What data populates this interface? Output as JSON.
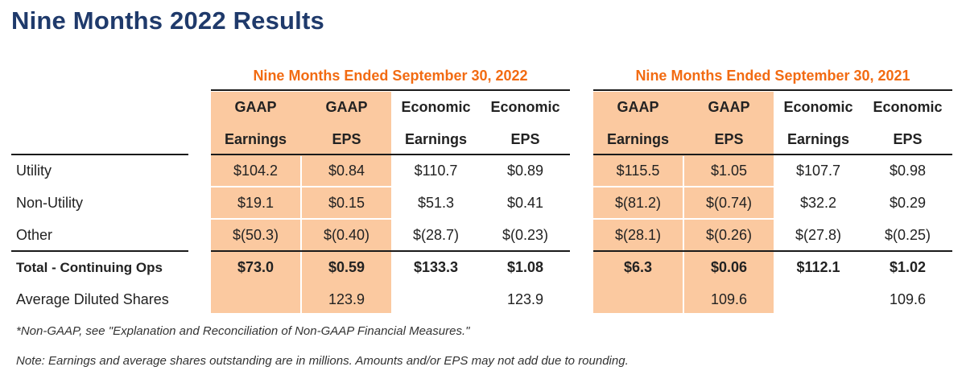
{
  "title": "Nine Months 2022 Results",
  "period_2022": "Nine Months Ended September 30, 2022",
  "period_2021": "Nine Months Ended September 30, 2021",
  "columns": [
    {
      "line1": "GAAP",
      "line2": "Earnings"
    },
    {
      "line1": "GAAP",
      "line2": "EPS"
    },
    {
      "line1": "Economic",
      "line2": "Earnings"
    },
    {
      "line1": "Economic",
      "line2": "EPS"
    }
  ],
  "rows": [
    {
      "label": "Utility",
      "v2022": [
        "$104.2",
        "$0.84",
        "$110.7",
        "$0.89"
      ],
      "v2021": [
        "$115.5",
        "$1.05",
        "$107.7",
        "$0.98"
      ]
    },
    {
      "label": "Non-Utility",
      "v2022": [
        "$19.1",
        "$0.15",
        "$51.3",
        "$0.41"
      ],
      "v2021": [
        "$(81.2)",
        "$(0.74)",
        "$32.2",
        "$0.29"
      ]
    },
    {
      "label": "Other",
      "v2022": [
        "$(50.3)",
        "$(0.40)",
        "$(28.7)",
        "$(0.23)"
      ],
      "v2021": [
        "$(28.1)",
        "$(0.26)",
        "$(27.8)",
        "$(0.25)"
      ]
    },
    {
      "label": "Total - Continuing Ops",
      "v2022": [
        "$73.0",
        "$0.59",
        "$133.3",
        "$1.08"
      ],
      "v2021": [
        "$6.3",
        "$0.06",
        "$112.1",
        "$1.02"
      ]
    },
    {
      "label": "Average Diluted Shares",
      "v2022": [
        "",
        "123.9",
        "",
        "123.9"
      ],
      "v2021": [
        "",
        "109.6",
        "",
        "109.6"
      ]
    }
  ],
  "footnote": "*Non-GAAP, see \"Explanation and Reconciliation of Non-GAAP Financial Measures.\"",
  "note": "Note: Earnings and average shares outstanding are in millions. Amounts and/or EPS may not add due to rounding.",
  "colors": {
    "title": "#1f3a6b",
    "period_header": "#f26b12",
    "gaap_shade": "#fbc9a0"
  }
}
